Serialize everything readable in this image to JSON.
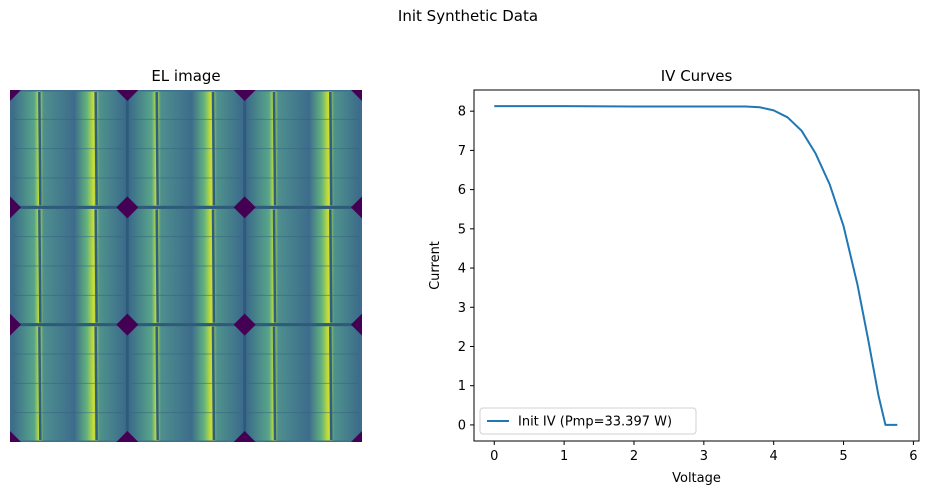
{
  "figure": {
    "suptitle": "Init Synthetic Data",
    "el_title": "EL image",
    "iv_title": "IV Curves"
  },
  "el_image": {
    "grid_rows": 3,
    "grid_cols": 3,
    "colormap": "viridis",
    "background_color": "#3f6f8d",
    "corner_color": "#440154",
    "busbar_color": "#2e5f7e",
    "bright_color": "#d8e219"
  },
  "chart_data": {
    "type": "line",
    "title": "IV Curves",
    "xlabel": "Voltage",
    "ylabel": "Current",
    "xlim": [
      -0.29,
      6.08
    ],
    "ylim": [
      -0.41,
      8.54
    ],
    "xticks": [
      0,
      1,
      2,
      3,
      4,
      5,
      6
    ],
    "yticks": [
      0,
      1,
      2,
      3,
      4,
      5,
      6,
      7,
      8
    ],
    "grid": false,
    "legend_position": "lower-left",
    "series": [
      {
        "name": "Init IV (Pmp=33.397 W)",
        "color": "#1f77b4",
        "x": [
          0.0,
          1.0,
          2.0,
          3.0,
          3.6,
          3.8,
          4.0,
          4.2,
          4.4,
          4.6,
          4.8,
          5.0,
          5.2,
          5.35,
          5.5,
          5.6,
          5.65,
          5.77
        ],
        "y": [
          8.13,
          8.13,
          8.12,
          8.12,
          8.12,
          8.1,
          8.02,
          7.84,
          7.5,
          6.92,
          6.14,
          5.07,
          3.57,
          2.2,
          0.75,
          0.0,
          0.0,
          0.0
        ]
      }
    ]
  }
}
